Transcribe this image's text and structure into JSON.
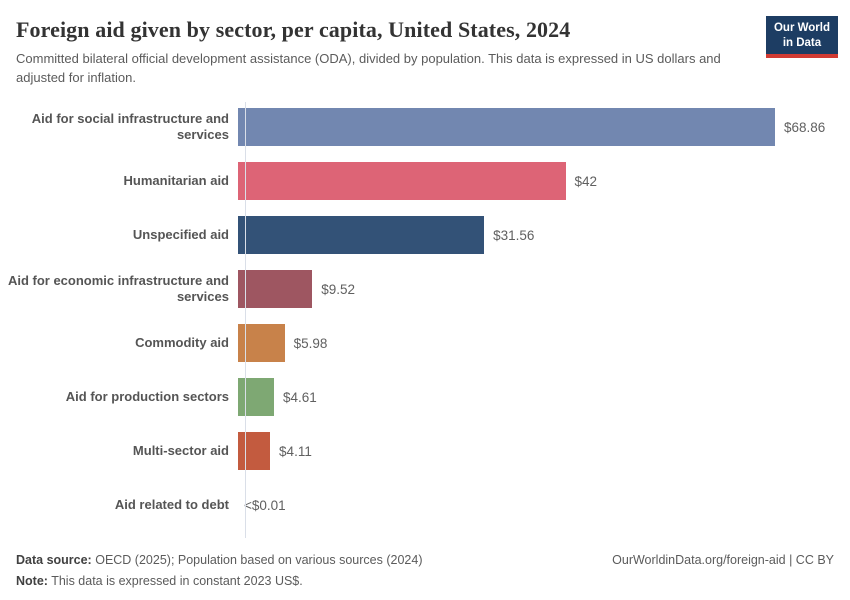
{
  "header": {
    "title": "Foreign aid given by sector, per capita, United States, 2024",
    "subtitle": "Committed bilateral official development assistance (ODA), divided by population. This data is expressed in US dollars and adjusted for inflation.",
    "logo_line1": "Our World",
    "logo_line2": "in Data"
  },
  "chart_data": {
    "type": "bar",
    "orientation": "horizontal",
    "title": "Foreign aid given by sector, per capita, United States, 2024",
    "categories": [
      "Aid for social infrastructure and services",
      "Humanitarian aid",
      "Unspecified aid",
      "Aid for economic infrastructure and services",
      "Commodity aid",
      "Aid for production sectors",
      "Multi-sector aid",
      "Aid related to debt"
    ],
    "values": [
      68.86,
      42,
      31.56,
      9.52,
      5.98,
      4.61,
      4.11,
      0.01
    ],
    "value_labels": [
      "$68.86",
      "$42",
      "$31.56",
      "$9.52",
      "$5.98",
      "$4.61",
      "$4.11",
      "<$0.01"
    ],
    "bar_colors": [
      "#7287b0",
      "#dd6476",
      "#335277",
      "#9e5661",
      "#c8824a",
      "#7ea873",
      "#c35b3f",
      null
    ],
    "xlim": [
      0,
      68.86
    ],
    "grid": false,
    "legend": false
  },
  "footer": {
    "datasource_label": "Data source:",
    "datasource_text": "OECD (2025); Population based on various sources (2024)",
    "note_label": "Note:",
    "note_text": "This data is expressed in constant 2023 US$.",
    "link_text": "OurWorldinData.org/foreign-aid | CC BY"
  },
  "colors": {
    "logo_bg": "#1d3d63",
    "logo_underline": "#d13b33",
    "axis_line": "#dadfe8",
    "title_text": "#333333",
    "subtitle_text": "#5b5b5b"
  }
}
